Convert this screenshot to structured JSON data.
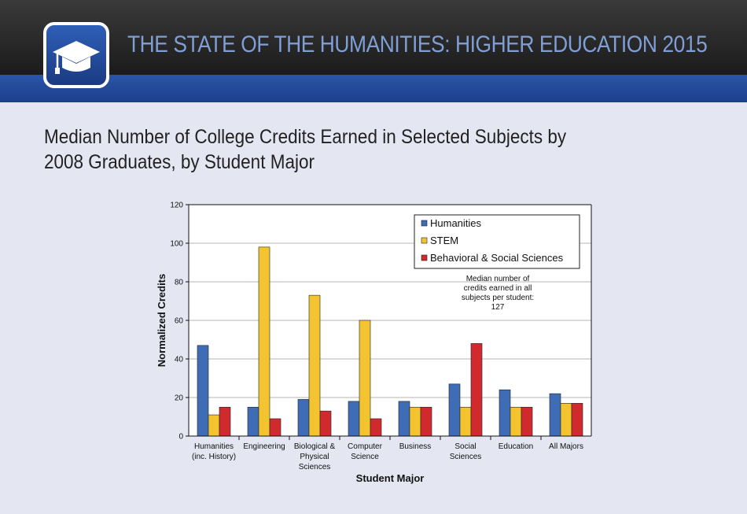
{
  "header": {
    "title": "THE STATE OF THE HUMANITIES: HIGHER EDUCATION 2015",
    "logo_icon": "graduation-cap-icon"
  },
  "chart_title_lines": [
    "Median Number of College Credits Earned in Selected Subjects by",
    "2008 Graduates, by Student Major"
  ],
  "colors": {
    "header_dark": "#2a2a2a",
    "band_blue": "#2450a0",
    "background": "#e4e6f1",
    "humanities": "#3e6db6",
    "stem": "#f4c430",
    "bss": "#d12a2e"
  },
  "chart_data": {
    "type": "bar",
    "title": "Median Number of College Credits Earned in Selected Subjects by 2008 Graduates, by Student Major",
    "xlabel": "Student Major",
    "ylabel": "Normalized Credits",
    "ylim": [
      0,
      120
    ],
    "yticks": [
      0,
      20,
      40,
      60,
      80,
      100,
      120
    ],
    "grid": true,
    "legend_position": "top-right",
    "categories": [
      [
        "Humanities",
        "(inc. History)"
      ],
      [
        "Engineering"
      ],
      [
        "Biological &",
        "Physical",
        "Sciences"
      ],
      [
        "Computer",
        "Science"
      ],
      [
        "Business"
      ],
      [
        "Social",
        "Sciences"
      ],
      [
        "Education"
      ],
      [
        "All Majors"
      ]
    ],
    "series": [
      {
        "name": "Humanities",
        "color": "#3e6db6",
        "values": [
          47,
          15,
          19,
          18,
          18,
          27,
          24,
          22
        ]
      },
      {
        "name": "STEM",
        "color": "#f4c430",
        "values": [
          11,
          98,
          73,
          60,
          15,
          15,
          15,
          17
        ]
      },
      {
        "name": "Behavioral & Social Sciences",
        "color": "#d12a2e",
        "values": [
          15,
          9,
          13,
          9,
          15,
          48,
          15,
          17
        ]
      }
    ],
    "annotation": [
      "Median number of",
      "credits earned in all",
      "subjects per student:",
      "127"
    ]
  }
}
